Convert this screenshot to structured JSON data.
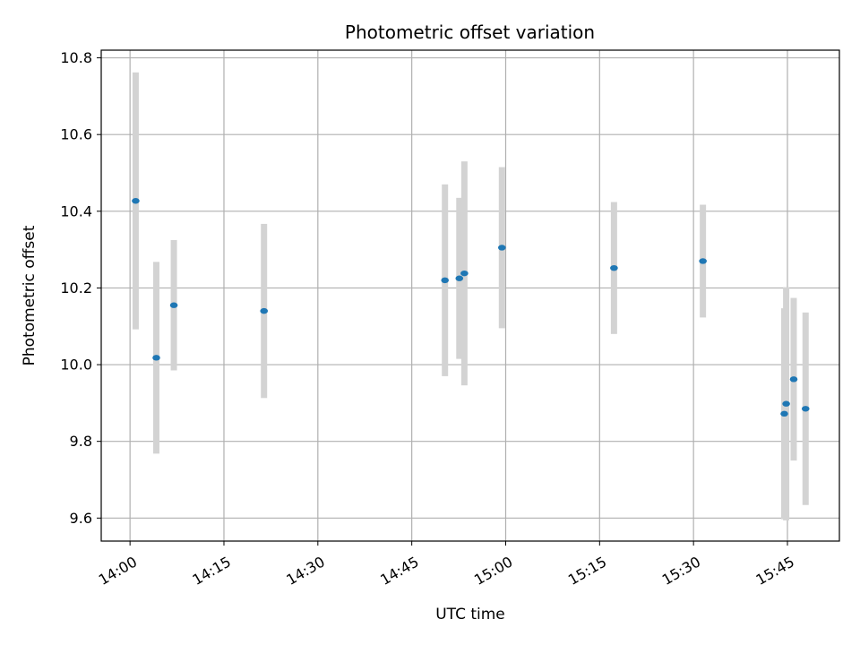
{
  "chart_data": {
    "type": "scatter",
    "title": "Photometric offset variation",
    "xlabel": "UTC time",
    "ylabel": "Photometric offset",
    "x_tick_labels": [
      "14:00",
      "14:15",
      "14:30",
      "14:45",
      "15:00",
      "15:15",
      "15:30",
      "15:45"
    ],
    "x_tick_minutes": [
      840,
      855,
      870,
      885,
      900,
      915,
      930,
      945
    ],
    "y_tick_labels": [
      "9.6",
      "9.8",
      "10.0",
      "10.2",
      "10.4",
      "10.6",
      "10.8"
    ],
    "y_tick_values": [
      9.6,
      9.8,
      10.0,
      10.2,
      10.4,
      10.6,
      10.8
    ],
    "xlim_minutes": [
      835.4,
      953.3
    ],
    "ylim": [
      9.54,
      10.82
    ],
    "grid": true,
    "points": [
      {
        "time": "14:00:54",
        "minutes": 840.9,
        "y": 10.427,
        "err": 0.335
      },
      {
        "time": "14:04:12",
        "minutes": 844.2,
        "y": 10.018,
        "err": 0.25
      },
      {
        "time": "14:07:00",
        "minutes": 847.0,
        "y": 10.155,
        "err": 0.17
      },
      {
        "time": "14:21:24",
        "minutes": 861.4,
        "y": 10.14,
        "err": 0.227
      },
      {
        "time": "14:50:18",
        "minutes": 890.3,
        "y": 10.22,
        "err": 0.25
      },
      {
        "time": "14:52:36",
        "minutes": 892.6,
        "y": 10.225,
        "err": 0.21
      },
      {
        "time": "14:53:24",
        "minutes": 893.4,
        "y": 10.238,
        "err": 0.292
      },
      {
        "time": "14:59:24",
        "minutes": 899.4,
        "y": 10.305,
        "err": 0.21
      },
      {
        "time": "15:17:18",
        "minutes": 917.3,
        "y": 10.252,
        "err": 0.172
      },
      {
        "time": "15:31:30",
        "minutes": 931.5,
        "y": 10.27,
        "err": 0.147
      },
      {
        "time": "15:44:30",
        "minutes": 944.5,
        "y": 9.872,
        "err": 0.275
      },
      {
        "time": "15:44:48",
        "minutes": 944.8,
        "y": 9.898,
        "err": 0.304
      },
      {
        "time": "15:46:00",
        "minutes": 946.0,
        "y": 9.962,
        "err": 0.212
      },
      {
        "time": "15:47:54",
        "minutes": 947.9,
        "y": 9.885,
        "err": 0.251
      }
    ],
    "marker_color": "#1f77b4",
    "errorbar_color": "#d3d3d3",
    "grid_color": "#b0b0b0"
  }
}
